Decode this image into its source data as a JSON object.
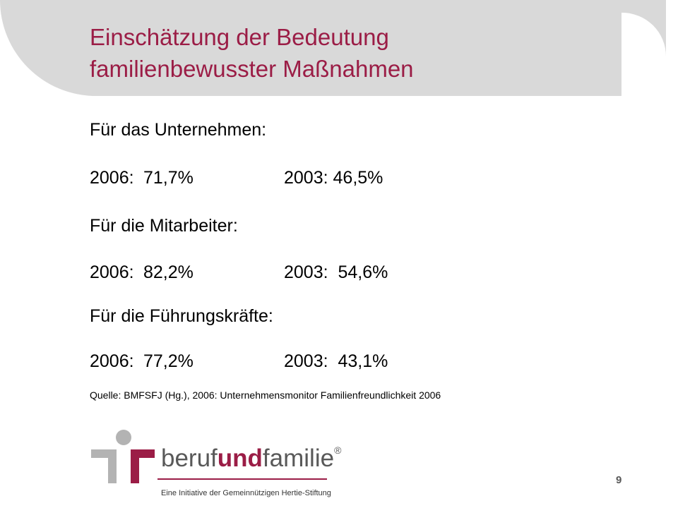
{
  "slide": {
    "title_line1": "Einschätzung der Bedeutung",
    "title_line2": "familienbewusster Maßnahmen",
    "sections": [
      {
        "heading": "Für das Unternehmen:",
        "year_a": "2006:",
        "value_a": "71,7%",
        "comparison": "2003: 46,5%"
      },
      {
        "heading": "Für die Mitarbeiter:",
        "year_a": "2006:",
        "value_a": "82,2%",
        "comparison": "2003:  54,6%"
      },
      {
        "heading": "Für die Führungskräfte:",
        "year_a": "2006:",
        "value_a": "77,2%",
        "comparison": "2003:  43,1%"
      }
    ],
    "source": "Quelle: BMFSFJ (Hg.), 2006: Unternehmensmonitor Familienfreundlichkeit 2006",
    "page_number": "9"
  },
  "logo": {
    "word_beruf": "beruf",
    "word_und": "und",
    "word_familie": "familie",
    "registered": "®",
    "tagline": "Eine Initiative der Gemeinnützigen Hertie-Stiftung"
  },
  "colors": {
    "accent": "#9b1d46",
    "header_band": "#d9d9d9",
    "logo_gray": "#b3b3b3"
  }
}
